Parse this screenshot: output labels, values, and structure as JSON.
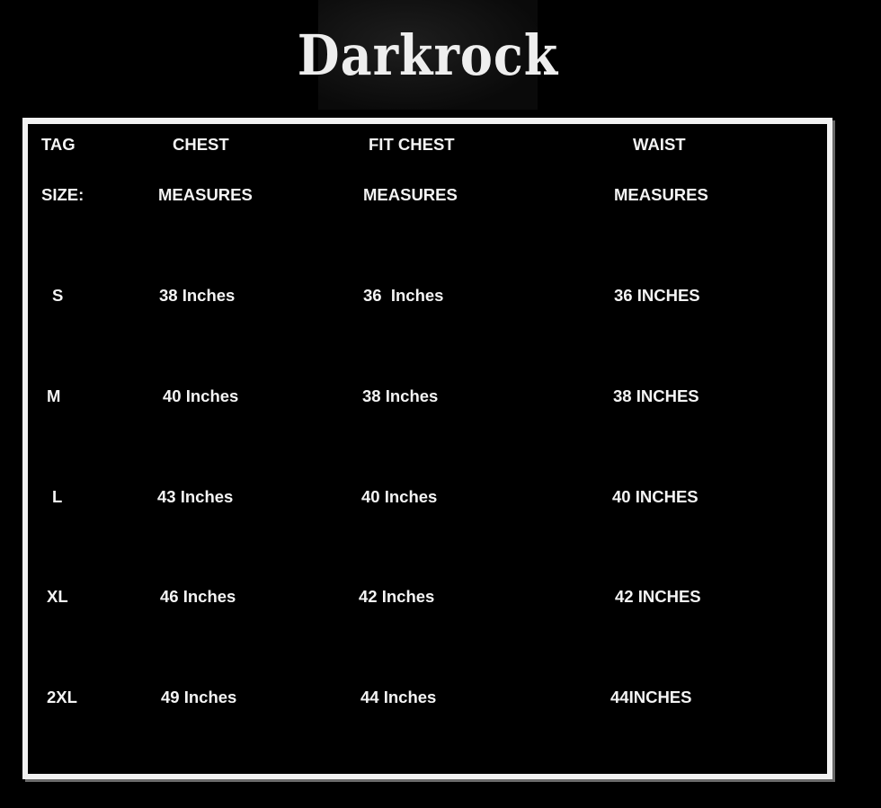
{
  "logo": {
    "text": "Darkrock"
  },
  "header": {
    "row1": [
      "TAG",
      "CHEST",
      "FIT CHEST",
      "WAIST"
    ],
    "row2": [
      "SIZE:",
      "MEASURES",
      "MEASURES",
      "MEASURES"
    ]
  },
  "rows": [
    {
      "size": "S",
      "chest": "38 Inches",
      "fit_chest": "36  Inches",
      "waist": "36 INCHES"
    },
    {
      "size": "M",
      "chest": "40 Inches",
      "fit_chest": "38 Inches",
      "waist": "38 INCHES"
    },
    {
      "size": "L",
      "chest": "43 Inches",
      "fit_chest": "40 Inches",
      "waist": "40 INCHES"
    },
    {
      "size": "XL",
      "chest": "46 Inches",
      "fit_chest": "42 Inches",
      "waist": "42 INCHES"
    },
    {
      "size": "2XL",
      "chest": "49 Inches",
      "fit_chest": "44 Inches",
      "waist": "44INCHES"
    }
  ],
  "colors": {
    "background": "#000000",
    "text": "#f4f4f4",
    "frame": "#f2f2f2"
  }
}
